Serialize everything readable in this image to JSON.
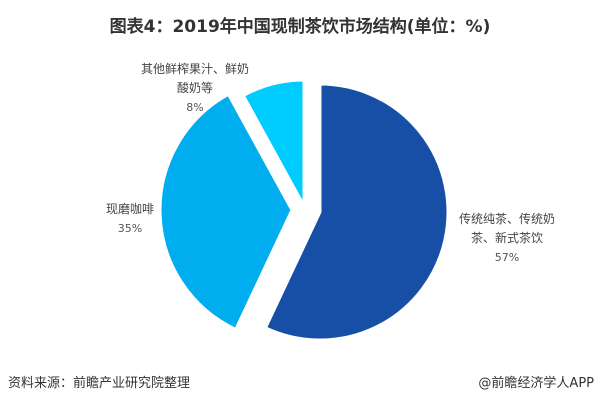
{
  "chart_data": {
    "type": "pie",
    "title": "图表4：2019年中国现制茶饮市场结构(单位：%)",
    "slices": [
      {
        "label": "传统纯茶、传统奶茶、新式茶饮",
        "value": 57,
        "value_label": "57%",
        "color": "#174ea6"
      },
      {
        "label": "现磨咖啡",
        "value": 35,
        "value_label": "35%",
        "color": "#00adef"
      },
      {
        "label": "其他鲜榨果汁、鲜奶酸奶等",
        "value": 8,
        "value_label": "8%",
        "color": "#00ccff"
      }
    ],
    "exploded": true
  },
  "footer": {
    "source": "资料来源：前瞻产业研究院整理",
    "credit": "@前瞻经济学人APP"
  }
}
